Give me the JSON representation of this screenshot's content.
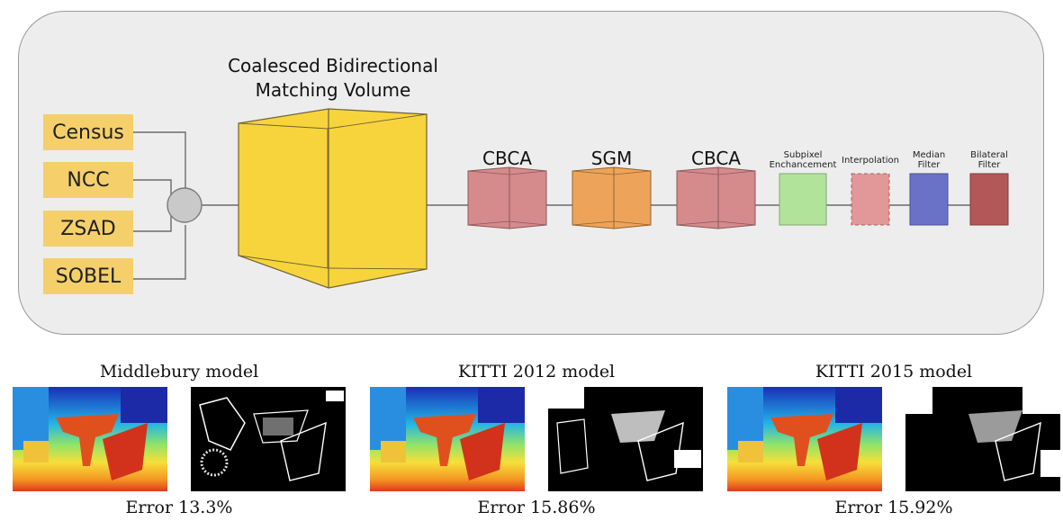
{
  "diagram": {
    "inputs": [
      "Census",
      "NCC",
      "ZSAD",
      "SOBEL"
    ],
    "volume_title": "Coalesced Bidirectional Matching Volume",
    "stages": [
      "CBCA",
      "SGM",
      "CBCA"
    ],
    "post_steps": [
      "Subpixel Enchancement",
      "Interpolation",
      "Median Filter",
      "Bilateral Filter"
    ],
    "colors": {
      "feature_box": "#f5cf6a",
      "volume": "#f7d43c",
      "cbca": "#d58a8c",
      "sgm": "#eda45a",
      "subpixel": "#b2e39a",
      "interpolation": "#e29898",
      "median": "#6a72c8",
      "bilateral": "#b25858"
    }
  },
  "results": [
    {
      "model": "Middlebury model",
      "error": "Error 13.3%"
    },
    {
      "model": "KITTI 2012 model",
      "error": "Error 15.86%"
    },
    {
      "model": "KITTI 2015 model",
      "error": "Error 15.92%"
    }
  ]
}
